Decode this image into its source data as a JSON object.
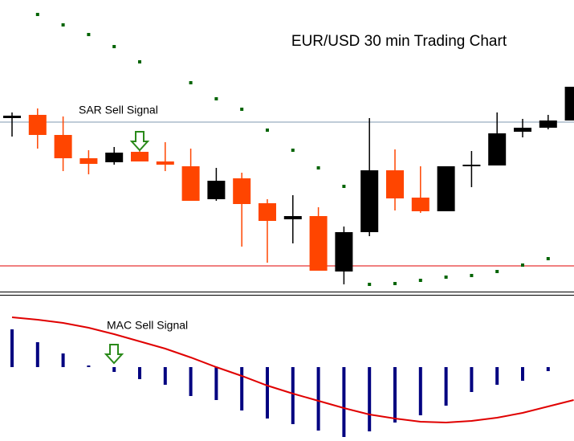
{
  "chart_data": [
    {
      "type": "candlestick",
      "title": "EUR/USD 30 min Trading Chart",
      "annotation": "SAR Sell Signal",
      "categories": [
        null,
        null,
        null,
        null,
        null,
        null,
        null,
        null,
        null,
        null,
        null,
        null,
        null,
        null,
        null,
        null,
        null,
        null,
        null,
        null,
        null,
        null,
        null
      ],
      "open": [
        218,
        222,
        197,
        168,
        163,
        176,
        164,
        158,
        117,
        143,
        112,
        92,
        96,
        27,
        76,
        153,
        119,
        102,
        158,
        159,
        201,
        206,
        215
      ],
      "high": [
        225,
        230,
        220,
        178,
        182,
        180,
        188,
        180,
        156,
        150,
        117,
        122,
        107,
        83,
        218,
        179,
        158,
        158,
        177,
        225,
        217,
        222,
        257
      ],
      "low": [
        195,
        180,
        152,
        148,
        160,
        164,
        152,
        115,
        115,
        58,
        38,
        62,
        28,
        11,
        71,
        103,
        100,
        102,
        132,
        159,
        194,
        204,
        215
      ],
      "close": [
        221,
        197,
        168,
        161,
        175,
        164,
        160,
        115,
        140,
        111,
        90,
        96,
        28,
        76,
        153,
        118,
        102,
        158,
        160,
        199,
        206,
        215,
        257
      ],
      "up_color": "#000000",
      "down_color": "#ff4500",
      "sar": {
        "color": "#006400",
        "values": [
          null,
          347,
          334,
          322,
          307,
          288,
          null,
          262,
          242,
          229,
          203,
          178,
          156,
          133,
          11,
          12,
          16,
          20,
          22,
          27,
          35,
          43,
          null
        ]
      },
      "hlines": [
        {
          "value": 213,
          "color": "#7f98b0"
        },
        {
          "value": 34,
          "color": "#e00000"
        }
      ],
      "ylim": [
        2,
        365
      ]
    },
    {
      "type": "macd",
      "annotation": "MAC Sell Signal",
      "categories": [
        null,
        null,
        null,
        null,
        null,
        null,
        null,
        null,
        null,
        null,
        null,
        null,
        null,
        null,
        null,
        null,
        null,
        null,
        null,
        null,
        null,
        null,
        null
      ],
      "histogram": {
        "color": "#000080",
        "values": [
          47,
          31,
          17,
          2,
          -6,
          -15,
          -22,
          -36,
          -41,
          -54,
          -64,
          -71,
          -79,
          -87,
          -80,
          -69,
          -60,
          -48,
          -31,
          -22,
          -17,
          -5,
          null
        ]
      },
      "signal": {
        "color": "#e00000",
        "values": [
          62,
          59,
          55,
          49,
          41,
          32,
          23,
          12,
          0,
          -11,
          -23,
          -33,
          -42,
          -51,
          -59,
          -64,
          -68,
          -69,
          -67,
          -63,
          -57,
          -49,
          -41
        ]
      },
      "ylim": [
        -92,
        87
      ]
    }
  ]
}
